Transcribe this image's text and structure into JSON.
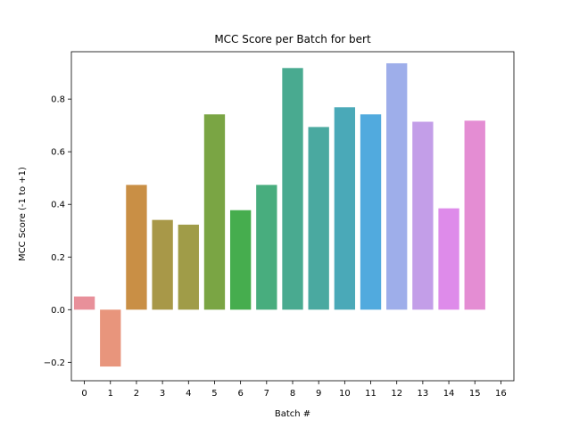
{
  "chart_data": {
    "type": "bar",
    "title": "MCC Score per Batch for bert",
    "xlabel": "Batch #",
    "ylabel": "MCC Score (-1 to +1)",
    "categories": [
      "0",
      "1",
      "2",
      "3",
      "4",
      "5",
      "6",
      "7",
      "8",
      "9",
      "10",
      "11",
      "12",
      "13",
      "14",
      "15",
      "16"
    ],
    "values": [
      0.05,
      -0.216,
      0.474,
      0.341,
      0.323,
      0.742,
      0.378,
      0.474,
      0.918,
      0.694,
      0.769,
      0.742,
      0.936,
      0.714,
      0.385,
      0.718,
      null
    ],
    "ylim": [
      -0.27,
      0.98
    ],
    "yticks": [
      -0.2,
      0.0,
      0.2,
      0.4,
      0.6,
      0.8
    ],
    "ytick_labels": [
      "−0.2",
      "0.0",
      "0.2",
      "0.4",
      "0.6",
      "0.8"
    ],
    "grid": false,
    "colors": [
      "#e8909a",
      "#e8957c",
      "#c98f45",
      "#a89848",
      "#a09c48",
      "#7aa544",
      "#46ad4e",
      "#48ad7e",
      "#49aa90",
      "#4aa9a0",
      "#4aa9b8",
      "#51aade",
      "#9eaeea",
      "#c39ee8",
      "#de8bea",
      "#e48dd3",
      "#e88fb6"
    ]
  }
}
